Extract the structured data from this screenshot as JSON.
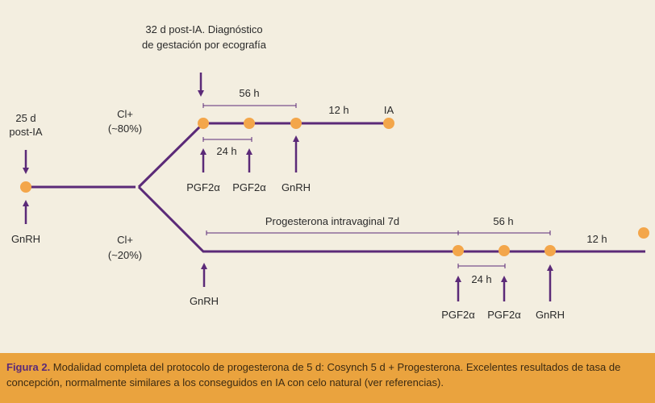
{
  "colors": {
    "line": "#5b2a78",
    "dot": "#f3a64a",
    "caption_bg": "#eaa33e",
    "label": "#2a2a2a"
  },
  "left": {
    "time_line1": "25 d",
    "time_line2": "post-IA",
    "gnrh": "GnRH"
  },
  "upper": {
    "note_line1": "32 d post-IA. Diagnóstico",
    "note_line2": "de gestación por ecografía",
    "cl_line1": "Cl+",
    "cl_line2": "(~80%)",
    "interval_56h": "56 h",
    "interval_24h": "24 h",
    "interval_12h": "12 h",
    "ia": "IA",
    "pgf1": "PGF2α",
    "pgf2": "PGF2α",
    "gnrh": "GnRH"
  },
  "lower": {
    "cl_line1": "Cl+",
    "cl_line2": "(~20%)",
    "gnrh_start": "GnRH",
    "progesterona": "Progesterona intravaginal 7d",
    "interval_56h": "56 h",
    "interval_24h": "24 h",
    "interval_12h": "12 h",
    "pgf1": "PGF2α",
    "pgf2": "PGF2α",
    "gnrh": "GnRH"
  },
  "caption": {
    "label": "Figura 2.",
    "text": " Modalidad completa del protocolo de progesterona de 5 d: Cosynch 5 d + Progesterona. Excelentes resultados de tasa de  concepción, normalmente similares a los conseguidos en IA con celo natural (ver referencias)."
  }
}
